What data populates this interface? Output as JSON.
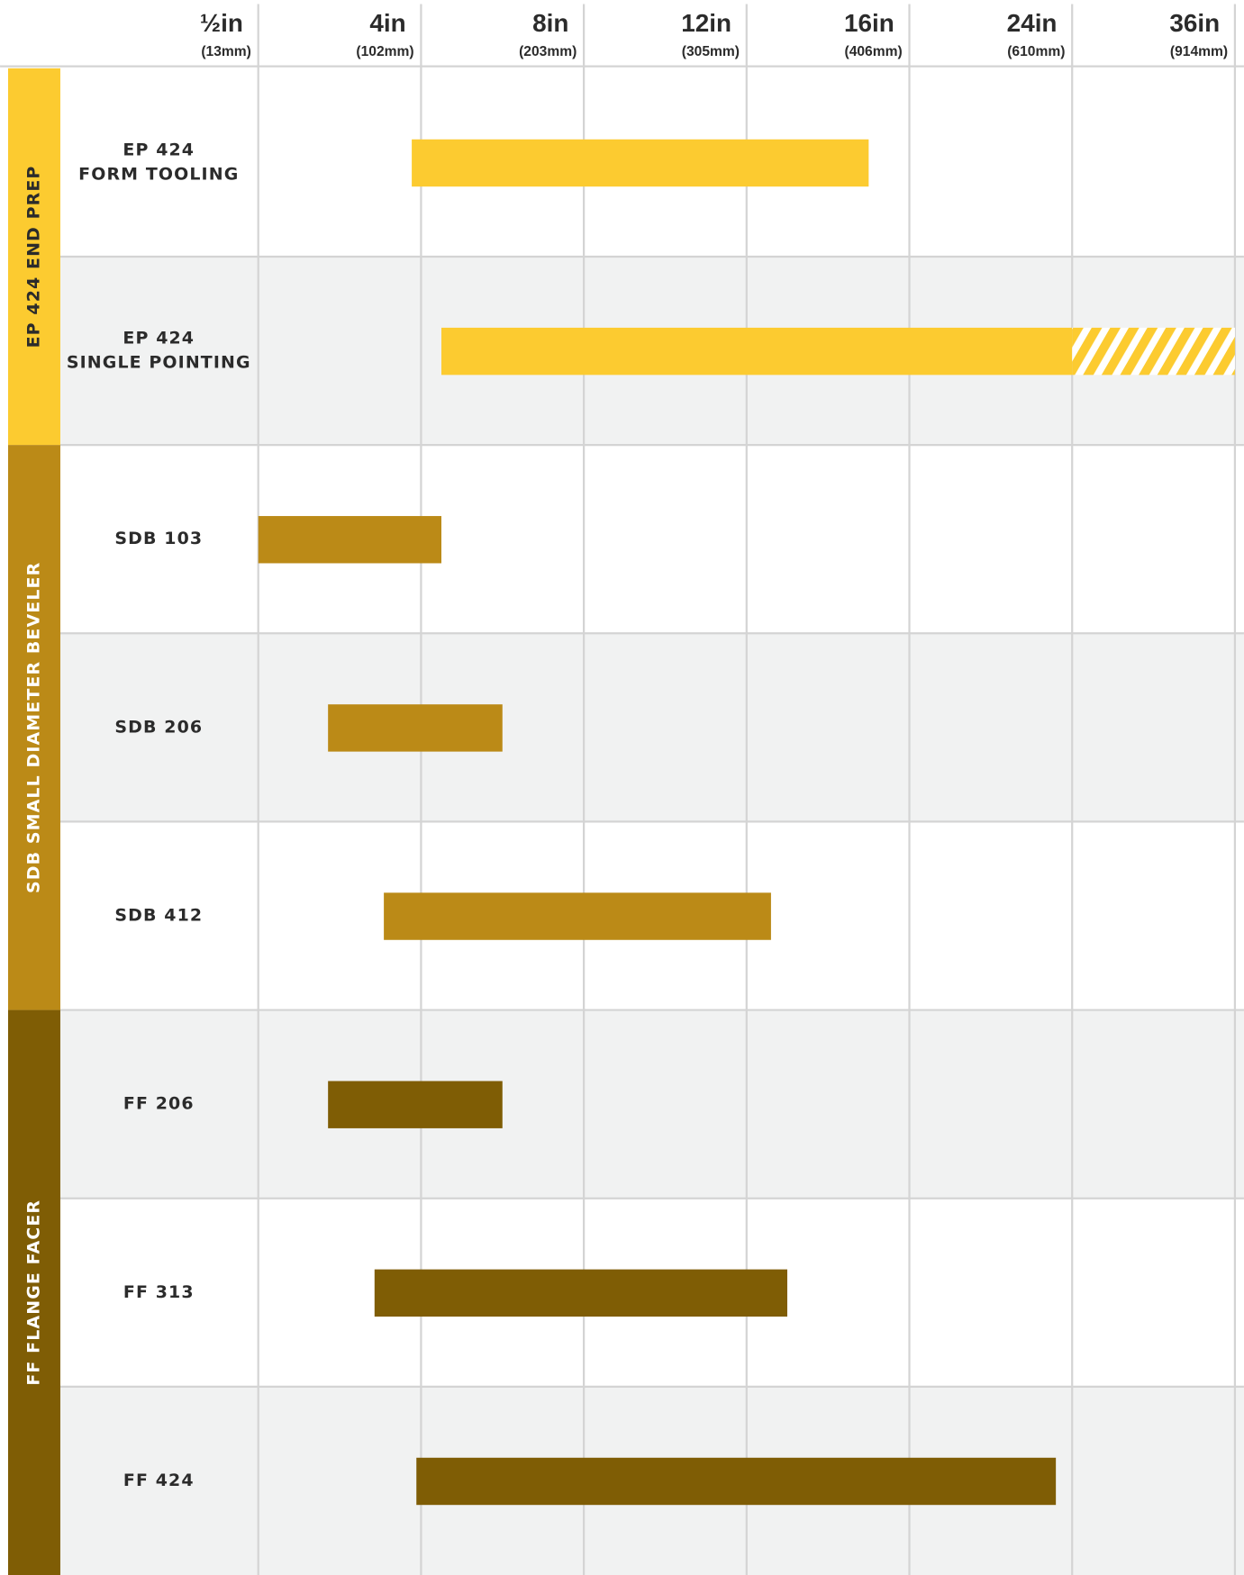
{
  "chart_data": {
    "type": "range_bar",
    "xticks": [
      {
        "value": 0.5,
        "label": "½in",
        "sublabel": "(13mm)"
      },
      {
        "value": 4,
        "label": "4in",
        "sublabel": "(102mm)"
      },
      {
        "value": 8,
        "label": "8in",
        "sublabel": "(203mm)"
      },
      {
        "value": 12,
        "label": "12in",
        "sublabel": "(305mm)"
      },
      {
        "value": 16,
        "label": "16in",
        "sublabel": "(406mm)"
      },
      {
        "value": 24,
        "label": "24in",
        "sublabel": "(610mm)"
      },
      {
        "value": 36,
        "label": "36in",
        "sublabel": "(914mm)"
      }
    ],
    "grid": true,
    "groups": [
      {
        "name": "EP 424 END PREP",
        "color": "#fccb30",
        "label_color": "#2b2b2b",
        "rows": [
          {
            "label": [
              "EP 424",
              "FORM TOOLING"
            ],
            "range": [
              3.8,
              15
            ]
          },
          {
            "label": [
              "EP 424",
              "SINGLE POINTING"
            ],
            "range": [
              4.5,
              24
            ],
            "extended_range": [
              24,
              36
            ]
          }
        ]
      },
      {
        "name": "SDB SMALL DIAMETER BEVELER",
        "color": "#bb8a17",
        "label_color": "#ffffff",
        "rows": [
          {
            "label": [
              "SDB 103"
            ],
            "range": [
              0.5,
              4.5
            ]
          },
          {
            "label": [
              "SDB 206"
            ],
            "range": [
              2,
              6
            ]
          },
          {
            "label": [
              "SDB 412"
            ],
            "range": [
              3.2,
              12.6
            ]
          }
        ]
      },
      {
        "name": "FF FLANGE FACER",
        "color": "#7f5d05",
        "label_color": "#ffffff",
        "rows": [
          {
            "label": [
              "FF 206"
            ],
            "range": [
              2,
              6
            ]
          },
          {
            "label": [
              "FF 313"
            ],
            "range": [
              3,
              13
            ]
          },
          {
            "label": [
              "FF 424"
            ],
            "range": [
              3.9,
              23.2
            ]
          }
        ]
      }
    ]
  }
}
